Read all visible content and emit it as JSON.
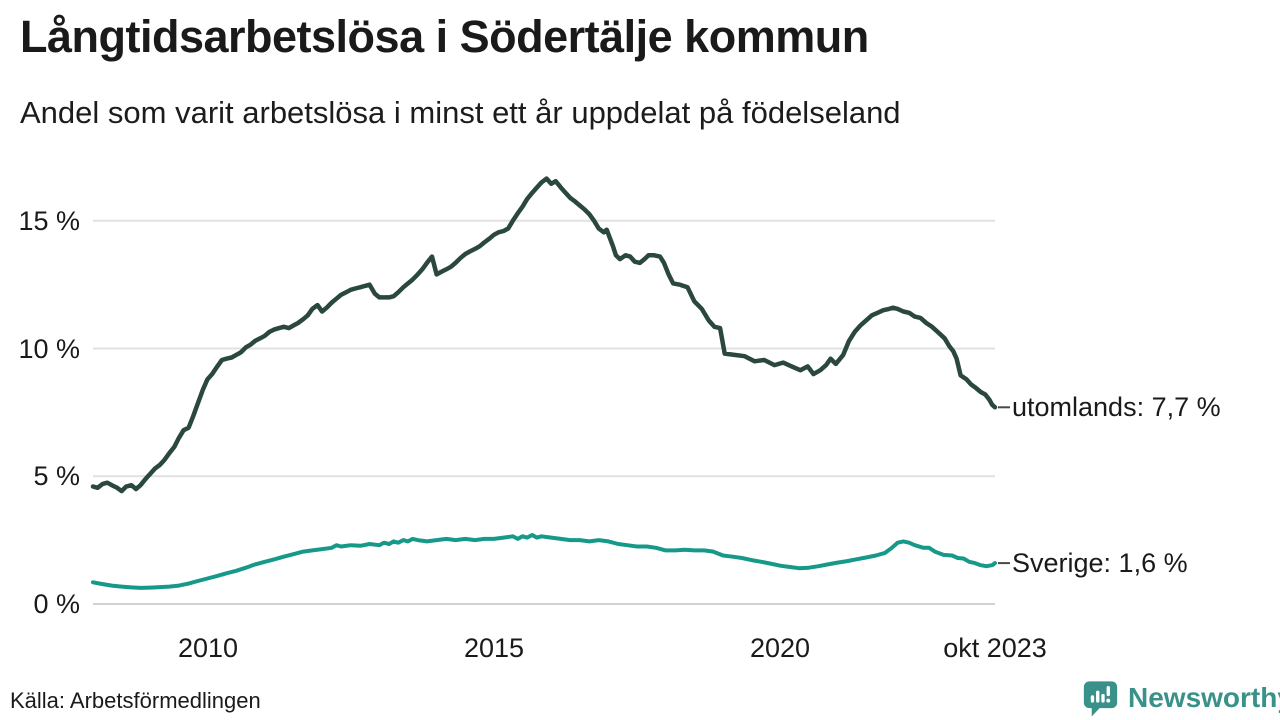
{
  "header": {
    "title": "Långtidsarbetslösa i Södertälje kommun",
    "subtitle": "Andel som varit arbetslösa i minst ett år uppdelat på födelseland"
  },
  "footer": {
    "source": "Källa: Arbetsförmedlingen",
    "brand": "Newsworthy"
  },
  "icons": {
    "brand_icon": "bar-chart-speech-bubble"
  },
  "colors": {
    "text": "#1a1a1a",
    "gridline": "#e1e1e1",
    "baseline": "#d2d2d2",
    "connector": "#4a4a4a",
    "brand_teal": "#3a9189",
    "utomlands_line": "#2b4840",
    "sverige_line": "#17998a"
  },
  "chart_data": {
    "type": "line",
    "title": "Långtidsarbetslösa i Södertälje kommun",
    "subtitle": "Andel som varit arbetslösa i minst ett år uppdelat på födelseland",
    "unit": "%",
    "x_domain": [
      2008,
      2023.75
    ],
    "y_domain": [
      0,
      17
    ],
    "grid": "horizontal-only",
    "legend_position": "right-end-labels",
    "y_ticks": [
      {
        "value": 15,
        "label": "15 %"
      },
      {
        "value": 10,
        "label": "10 %"
      },
      {
        "value": 5,
        "label": "5 %"
      },
      {
        "value": 0,
        "label": "0 %"
      }
    ],
    "x_ticks": [
      {
        "value": 2010,
        "label": "2010"
      },
      {
        "value": 2015,
        "label": "2015"
      },
      {
        "value": 2020,
        "label": "2020"
      },
      {
        "value": 2023.75,
        "label": "okt 2023"
      }
    ],
    "series": [
      {
        "name": "utomlands",
        "end_label": "utomlands: 7,7 %",
        "end_value": 7.7,
        "color": "#2b4840",
        "stroke_width": 4.5,
        "points": [
          [
            2008.0,
            4.6
          ],
          [
            2008.08,
            4.55
          ],
          [
            2008.17,
            4.7
          ],
          [
            2008.25,
            4.75
          ],
          [
            2008.33,
            4.65
          ],
          [
            2008.42,
            4.55
          ],
          [
            2008.5,
            4.42
          ],
          [
            2008.58,
            4.6
          ],
          [
            2008.67,
            4.65
          ],
          [
            2008.75,
            4.5
          ],
          [
            2008.83,
            4.65
          ],
          [
            2008.92,
            4.9
          ],
          [
            2009.0,
            5.1
          ],
          [
            2009.08,
            5.3
          ],
          [
            2009.17,
            5.45
          ],
          [
            2009.25,
            5.65
          ],
          [
            2009.33,
            5.9
          ],
          [
            2009.42,
            6.15
          ],
          [
            2009.5,
            6.5
          ],
          [
            2009.58,
            6.8
          ],
          [
            2009.67,
            6.9
          ],
          [
            2009.75,
            7.35
          ],
          [
            2009.83,
            7.85
          ],
          [
            2009.92,
            8.4
          ],
          [
            2010.0,
            8.8
          ],
          [
            2010.08,
            9.0
          ],
          [
            2010.17,
            9.3
          ],
          [
            2010.25,
            9.55
          ],
          [
            2010.33,
            9.6
          ],
          [
            2010.42,
            9.65
          ],
          [
            2010.5,
            9.75
          ],
          [
            2010.58,
            9.85
          ],
          [
            2010.67,
            10.05
          ],
          [
            2010.75,
            10.15
          ],
          [
            2010.83,
            10.3
          ],
          [
            2010.92,
            10.4
          ],
          [
            2011.0,
            10.5
          ],
          [
            2011.08,
            10.65
          ],
          [
            2011.17,
            10.75
          ],
          [
            2011.25,
            10.8
          ],
          [
            2011.33,
            10.85
          ],
          [
            2011.42,
            10.8
          ],
          [
            2011.5,
            10.9
          ],
          [
            2011.58,
            11.0
          ],
          [
            2011.67,
            11.15
          ],
          [
            2011.75,
            11.3
          ],
          [
            2011.83,
            11.55
          ],
          [
            2011.92,
            11.7
          ],
          [
            2012.0,
            11.45
          ],
          [
            2012.08,
            11.6
          ],
          [
            2012.17,
            11.8
          ],
          [
            2012.25,
            11.95
          ],
          [
            2012.33,
            12.1
          ],
          [
            2012.42,
            12.2
          ],
          [
            2012.5,
            12.3
          ],
          [
            2012.58,
            12.35
          ],
          [
            2012.67,
            12.4
          ],
          [
            2012.75,
            12.45
          ],
          [
            2012.83,
            12.5
          ],
          [
            2012.92,
            12.15
          ],
          [
            2013.0,
            12.0
          ],
          [
            2013.08,
            12.0
          ],
          [
            2013.17,
            12.0
          ],
          [
            2013.25,
            12.05
          ],
          [
            2013.33,
            12.2
          ],
          [
            2013.42,
            12.4
          ],
          [
            2013.5,
            12.55
          ],
          [
            2013.58,
            12.7
          ],
          [
            2013.67,
            12.9
          ],
          [
            2013.75,
            13.1
          ],
          [
            2013.83,
            13.35
          ],
          [
            2013.92,
            13.6
          ],
          [
            2014.0,
            12.9
          ],
          [
            2014.08,
            13.0
          ],
          [
            2014.17,
            13.1
          ],
          [
            2014.25,
            13.2
          ],
          [
            2014.33,
            13.35
          ],
          [
            2014.42,
            13.55
          ],
          [
            2014.5,
            13.7
          ],
          [
            2014.58,
            13.8
          ],
          [
            2014.67,
            13.9
          ],
          [
            2014.75,
            14.0
          ],
          [
            2014.83,
            14.15
          ],
          [
            2014.92,
            14.3
          ],
          [
            2015.0,
            14.45
          ],
          [
            2015.08,
            14.55
          ],
          [
            2015.17,
            14.6
          ],
          [
            2015.25,
            14.7
          ],
          [
            2015.33,
            15.0
          ],
          [
            2015.42,
            15.3
          ],
          [
            2015.5,
            15.55
          ],
          [
            2015.58,
            15.85
          ],
          [
            2015.67,
            16.1
          ],
          [
            2015.75,
            16.3
          ],
          [
            2015.83,
            16.5
          ],
          [
            2015.92,
            16.65
          ],
          [
            2016.0,
            16.45
          ],
          [
            2016.08,
            16.55
          ],
          [
            2016.17,
            16.3
          ],
          [
            2016.25,
            16.1
          ],
          [
            2016.33,
            15.9
          ],
          [
            2016.42,
            15.75
          ],
          [
            2016.5,
            15.6
          ],
          [
            2016.58,
            15.45
          ],
          [
            2016.67,
            15.25
          ],
          [
            2016.75,
            15.0
          ],
          [
            2016.83,
            14.7
          ],
          [
            2016.92,
            14.55
          ],
          [
            2016.97,
            14.65
          ],
          [
            2017.08,
            14.0
          ],
          [
            2017.13,
            13.65
          ],
          [
            2017.2,
            13.5
          ],
          [
            2017.3,
            13.65
          ],
          [
            2017.38,
            13.6
          ],
          [
            2017.46,
            13.4
          ],
          [
            2017.55,
            13.35
          ],
          [
            2017.63,
            13.5
          ],
          [
            2017.7,
            13.65
          ],
          [
            2017.8,
            13.65
          ],
          [
            2017.9,
            13.6
          ],
          [
            2017.97,
            13.35
          ],
          [
            2018.05,
            12.9
          ],
          [
            2018.13,
            12.55
          ],
          [
            2018.25,
            12.5
          ],
          [
            2018.38,
            12.4
          ],
          [
            2018.5,
            11.85
          ],
          [
            2018.63,
            11.55
          ],
          [
            2018.75,
            11.1
          ],
          [
            2018.85,
            10.85
          ],
          [
            2018.95,
            10.8
          ],
          [
            2019.03,
            9.8
          ],
          [
            2019.2,
            9.75
          ],
          [
            2019.38,
            9.7
          ],
          [
            2019.55,
            9.5
          ],
          [
            2019.72,
            9.55
          ],
          [
            2019.9,
            9.35
          ],
          [
            2020.05,
            9.45
          ],
          [
            2020.2,
            9.3
          ],
          [
            2020.35,
            9.15
          ],
          [
            2020.48,
            9.3
          ],
          [
            2020.58,
            9.0
          ],
          [
            2020.7,
            9.15
          ],
          [
            2020.8,
            9.35
          ],
          [
            2020.88,
            9.6
          ],
          [
            2020.97,
            9.4
          ],
          [
            2021.1,
            9.75
          ],
          [
            2021.2,
            10.3
          ],
          [
            2021.3,
            10.65
          ],
          [
            2021.4,
            10.9
          ],
          [
            2021.5,
            11.1
          ],
          [
            2021.6,
            11.3
          ],
          [
            2021.7,
            11.4
          ],
          [
            2021.8,
            11.5
          ],
          [
            2021.9,
            11.55
          ],
          [
            2021.97,
            11.6
          ],
          [
            2022.05,
            11.55
          ],
          [
            2022.15,
            11.45
          ],
          [
            2022.25,
            11.4
          ],
          [
            2022.35,
            11.25
          ],
          [
            2022.45,
            11.2
          ],
          [
            2022.55,
            11.0
          ],
          [
            2022.65,
            10.85
          ],
          [
            2022.75,
            10.65
          ],
          [
            2022.87,
            10.4
          ],
          [
            2022.95,
            10.1
          ],
          [
            2023.02,
            9.9
          ],
          [
            2023.08,
            9.6
          ],
          [
            2023.15,
            8.95
          ],
          [
            2023.25,
            8.8
          ],
          [
            2023.33,
            8.6
          ],
          [
            2023.42,
            8.45
          ],
          [
            2023.5,
            8.3
          ],
          [
            2023.58,
            8.2
          ],
          [
            2023.65,
            8.0
          ],
          [
            2023.7,
            7.8
          ],
          [
            2023.75,
            7.7
          ]
        ]
      },
      {
        "name": "Sverige",
        "end_label": "Sverige: 1,6 %",
        "end_value": 1.6,
        "color": "#17998a",
        "stroke_width": 4,
        "points": [
          [
            2008.0,
            0.85
          ],
          [
            2008.17,
            0.78
          ],
          [
            2008.33,
            0.72
          ],
          [
            2008.5,
            0.68
          ],
          [
            2008.67,
            0.65
          ],
          [
            2008.83,
            0.63
          ],
          [
            2009.0,
            0.64
          ],
          [
            2009.17,
            0.66
          ],
          [
            2009.33,
            0.68
          ],
          [
            2009.5,
            0.72
          ],
          [
            2009.67,
            0.8
          ],
          [
            2009.83,
            0.9
          ],
          [
            2010.0,
            1.0
          ],
          [
            2010.17,
            1.1
          ],
          [
            2010.33,
            1.2
          ],
          [
            2010.5,
            1.3
          ],
          [
            2010.67,
            1.42
          ],
          [
            2010.83,
            1.55
          ],
          [
            2011.0,
            1.65
          ],
          [
            2011.17,
            1.75
          ],
          [
            2011.33,
            1.85
          ],
          [
            2011.5,
            1.95
          ],
          [
            2011.67,
            2.05
          ],
          [
            2011.83,
            2.1
          ],
          [
            2012.0,
            2.15
          ],
          [
            2012.17,
            2.2
          ],
          [
            2012.25,
            2.3
          ],
          [
            2012.33,
            2.25
          ],
          [
            2012.5,
            2.3
          ],
          [
            2012.67,
            2.28
          ],
          [
            2012.83,
            2.35
          ],
          [
            2013.0,
            2.3
          ],
          [
            2013.08,
            2.4
          ],
          [
            2013.17,
            2.35
          ],
          [
            2013.25,
            2.45
          ],
          [
            2013.33,
            2.4
          ],
          [
            2013.42,
            2.5
          ],
          [
            2013.5,
            2.45
          ],
          [
            2013.58,
            2.55
          ],
          [
            2013.67,
            2.5
          ],
          [
            2013.83,
            2.45
          ],
          [
            2014.0,
            2.5
          ],
          [
            2014.17,
            2.55
          ],
          [
            2014.33,
            2.5
          ],
          [
            2014.5,
            2.55
          ],
          [
            2014.67,
            2.5
          ],
          [
            2014.83,
            2.55
          ],
          [
            2015.0,
            2.55
          ],
          [
            2015.17,
            2.6
          ],
          [
            2015.33,
            2.65
          ],
          [
            2015.42,
            2.55
          ],
          [
            2015.5,
            2.65
          ],
          [
            2015.58,
            2.6
          ],
          [
            2015.67,
            2.7
          ],
          [
            2015.75,
            2.6
          ],
          [
            2015.83,
            2.65
          ],
          [
            2016.0,
            2.6
          ],
          [
            2016.17,
            2.55
          ],
          [
            2016.33,
            2.5
          ],
          [
            2016.5,
            2.5
          ],
          [
            2016.67,
            2.45
          ],
          [
            2016.83,
            2.5
          ],
          [
            2017.0,
            2.45
          ],
          [
            2017.17,
            2.35
          ],
          [
            2017.33,
            2.3
          ],
          [
            2017.5,
            2.25
          ],
          [
            2017.67,
            2.25
          ],
          [
            2017.83,
            2.2
          ],
          [
            2018.0,
            2.1
          ],
          [
            2018.17,
            2.1
          ],
          [
            2018.33,
            2.12
          ],
          [
            2018.5,
            2.1
          ],
          [
            2018.67,
            2.1
          ],
          [
            2018.83,
            2.05
          ],
          [
            2019.0,
            1.9
          ],
          [
            2019.17,
            1.85
          ],
          [
            2019.33,
            1.8
          ],
          [
            2019.5,
            1.72
          ],
          [
            2019.67,
            1.65
          ],
          [
            2019.83,
            1.58
          ],
          [
            2020.0,
            1.5
          ],
          [
            2020.17,
            1.45
          ],
          [
            2020.33,
            1.4
          ],
          [
            2020.5,
            1.42
          ],
          [
            2020.67,
            1.48
          ],
          [
            2020.83,
            1.55
          ],
          [
            2021.0,
            1.62
          ],
          [
            2021.17,
            1.68
          ],
          [
            2021.33,
            1.75
          ],
          [
            2021.5,
            1.82
          ],
          [
            2021.67,
            1.9
          ],
          [
            2021.83,
            2.0
          ],
          [
            2021.95,
            2.2
          ],
          [
            2022.05,
            2.4
          ],
          [
            2022.15,
            2.45
          ],
          [
            2022.25,
            2.4
          ],
          [
            2022.35,
            2.3
          ],
          [
            2022.5,
            2.2
          ],
          [
            2022.6,
            2.2
          ],
          [
            2022.7,
            2.05
          ],
          [
            2022.85,
            1.92
          ],
          [
            2023.0,
            1.9
          ],
          [
            2023.1,
            1.8
          ],
          [
            2023.2,
            1.78
          ],
          [
            2023.3,
            1.65
          ],
          [
            2023.4,
            1.6
          ],
          [
            2023.5,
            1.52
          ],
          [
            2023.6,
            1.48
          ],
          [
            2023.7,
            1.52
          ],
          [
            2023.75,
            1.6
          ]
        ]
      }
    ]
  }
}
